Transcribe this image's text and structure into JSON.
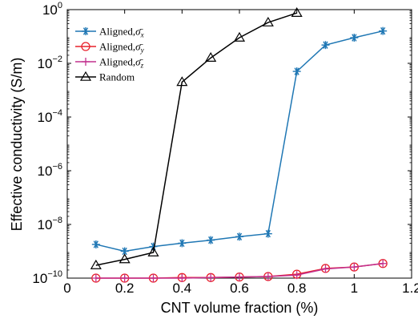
{
  "chart_data": {
    "type": "line",
    "xlabel": "CNT volume fraction (%)",
    "ylabel": "Effective conductivity (S/m)",
    "xlim": [
      0,
      1.2
    ],
    "ylim_log10": [
      -10,
      0
    ],
    "yscale": "log",
    "grid": false,
    "legend_position": "top-left",
    "x_ticks": [
      {
        "value": 0,
        "label": "0"
      },
      {
        "value": 0.2,
        "label": "0.2"
      },
      {
        "value": 0.4,
        "label": "0.4"
      },
      {
        "value": 0.6,
        "label": "0.6"
      },
      {
        "value": 0.8,
        "label": "0.8"
      },
      {
        "value": 1.0,
        "label": "1"
      },
      {
        "value": 1.2,
        "label": "1.2"
      }
    ],
    "y_ticks": [
      {
        "exp": -10,
        "base": "10",
        "power": "−10"
      },
      {
        "exp": -8,
        "base": "10",
        "power": "−8"
      },
      {
        "exp": -6,
        "base": "10",
        "power": "−6"
      },
      {
        "exp": -4,
        "base": "10",
        "power": "−4"
      },
      {
        "exp": -2,
        "base": "10",
        "power": "−2"
      },
      {
        "exp": 0,
        "base": "10",
        "power": "0"
      }
    ],
    "series": [
      {
        "name": "Aligned,σ̄x",
        "name_base": "Aligned,",
        "name_symbol": "σ̄",
        "name_sub": "x",
        "color": "#1f77b4",
        "marker": "asterisk",
        "x": [
          0.1,
          0.2,
          0.3,
          0.4,
          0.5,
          0.6,
          0.7,
          0.8,
          0.9,
          1.0,
          1.1
        ],
        "y": [
          1.8e-09,
          1e-09,
          1.5e-09,
          2e-09,
          2.6e-09,
          3.5e-09,
          4.5e-09,
          0.005,
          0.048,
          0.09,
          0.16
        ]
      },
      {
        "name": "Aligned,σ̄y",
        "name_base": "Aligned,",
        "name_symbol": "σ̄",
        "name_sub": "y",
        "color": "#e8202a",
        "marker": "circle",
        "x": [
          0.1,
          0.2,
          0.3,
          0.4,
          0.5,
          0.6,
          0.7,
          0.8,
          0.9,
          1.0,
          1.1
        ],
        "y": [
          1e-10,
          1e-10,
          1e-10,
          1.05e-10,
          1.05e-10,
          1.1e-10,
          1.15e-10,
          1.4e-10,
          2.3e-10,
          2.6e-10,
          3.5e-10
        ]
      },
      {
        "name": "Aligned,σ̄z",
        "name_base": "Aligned,",
        "name_symbol": "σ̄",
        "name_sub": "z",
        "color": "#c2308e",
        "marker": "plus",
        "x": [
          0.1,
          0.2,
          0.3,
          0.4,
          0.5,
          0.6,
          0.7,
          0.8,
          0.9,
          1.0,
          1.1
        ],
        "y": [
          1e-10,
          1e-10,
          1e-10,
          1e-10,
          1.05e-10,
          1.1e-10,
          1.15e-10,
          1.3e-10,
          2.2e-10,
          2.6e-10,
          3.5e-10
        ]
      },
      {
        "name": "Random",
        "name_base": "Random",
        "name_symbol": "",
        "name_sub": "",
        "color": "#000000",
        "marker": "triangle",
        "x": [
          0.1,
          0.2,
          0.3,
          0.4,
          0.5,
          0.6,
          0.7,
          0.8
        ],
        "y": [
          3e-10,
          5e-10,
          9e-10,
          0.002,
          0.016,
          0.09,
          0.33,
          0.75
        ]
      }
    ]
  }
}
